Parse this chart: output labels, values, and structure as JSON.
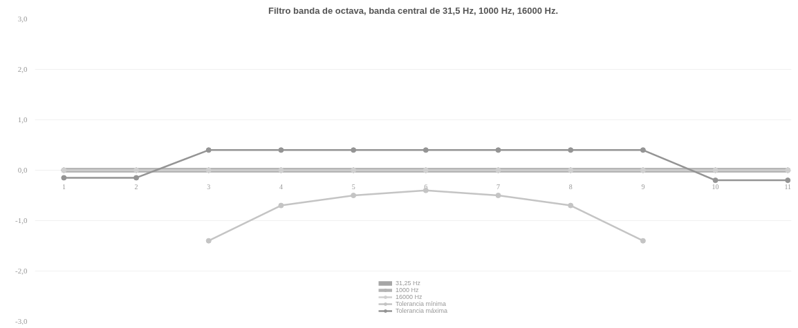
{
  "chart_data": {
    "type": "line",
    "title": "Filtro banda de octava, banda central de 31,5 Hz, 1000 Hz, 16000 Hz.",
    "categories": [
      "1",
      "2",
      "3",
      "4",
      "5",
      "6",
      "7",
      "8",
      "9",
      "10",
      "11"
    ],
    "ylim": [
      -3,
      3
    ],
    "yticks": [
      {
        "value": 3,
        "label": "3,0"
      },
      {
        "value": 2,
        "label": "2,0"
      },
      {
        "value": 1,
        "label": "1,0"
      },
      {
        "value": 0,
        "label": "0,0"
      },
      {
        "value": -1,
        "label": "-1,0"
      },
      {
        "value": -2,
        "label": "-2,0"
      },
      {
        "value": -3,
        "label": "-3,0"
      }
    ],
    "grid": "y",
    "legend": "bottom",
    "marker": "circle",
    "line_style": "solid",
    "series": [
      {
        "name": "31,25 Hz",
        "color": "#a6a6a6",
        "values": [
          0,
          0,
          0,
          0,
          0,
          0,
          0,
          0,
          0,
          0,
          0
        ]
      },
      {
        "name": "1000 Hz",
        "color": "#b4b4b4",
        "values": [
          0,
          0,
          0,
          0,
          0,
          0,
          0,
          0,
          0,
          0,
          0
        ]
      },
      {
        "name": "16000 Hz",
        "color": "#d0d0d0",
        "values": [
          0,
          0,
          0,
          0,
          0,
          0,
          0,
          0,
          0,
          0,
          0
        ]
      },
      {
        "name": "Tolerancia mínima",
        "color": "#c4c4c4",
        "values": [
          null,
          null,
          -1.4,
          -0.7,
          -0.5,
          -0.4,
          -0.5,
          -0.7,
          -1.4,
          null,
          null
        ]
      },
      {
        "name": "Tolerancia máxima",
        "color": "#949494",
        "values": [
          -0.15,
          -0.15,
          0.4,
          0.4,
          0.4,
          0.4,
          0.4,
          0.4,
          0.4,
          -0.2,
          -0.2
        ]
      }
    ]
  }
}
